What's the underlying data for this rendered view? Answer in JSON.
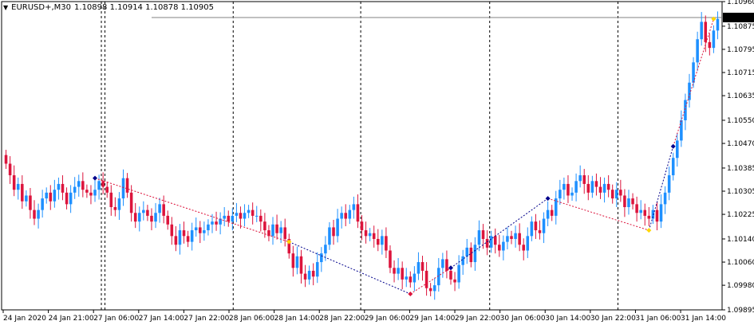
{
  "chart_header": {
    "dropdown_icon": "triangle-down-icon",
    "symbol": "EURUSD+,M30",
    "ohlc": "1.10898 1.10914 1.10878 1.10905"
  },
  "chart_data": {
    "type": "candlestick",
    "symbol": "EURUSD+",
    "timeframe": "M30",
    "ylim": [
      1.09895,
      1.1096
    ],
    "y_ticks": [
      "1.10960",
      "1.10875",
      "1.10795",
      "1.10715",
      "1.10635",
      "1.10550",
      "1.10470",
      "1.10385",
      "1.10305",
      "1.10225",
      "1.10140",
      "1.10060",
      "1.09980",
      "1.09895"
    ],
    "x_ticks": [
      "24 Jan 2020",
      "24 Jan 21:00",
      "27 Jan 06:00",
      "27 Jan 14:00",
      "27 Jan 22:00",
      "28 Jan 06:00",
      "28 Jan 14:00",
      "28 Jan 22:00",
      "29 Jan 06:00",
      "29 Jan 14:00",
      "29 Jan 22:00",
      "30 Jan 06:00",
      "30 Jan 14:00",
      "30 Jan 22:00",
      "31 Jan 06:00",
      "31 Jan 14:00"
    ],
    "current_price": "1.10905",
    "colors": {
      "up": "#1e90ff",
      "down": "#dc143c",
      "grid": "#000000",
      "zigzag_red": "#dc143c",
      "zigzag_blue": "#00008b",
      "marker_yellow": "#ffd700"
    },
    "closes": [
      1.104,
      1.1036,
      1.1031,
      1.1033,
      1.1027,
      1.1029,
      1.1024,
      1.1021,
      1.1024,
      1.1028,
      1.103,
      1.1027,
      1.1031,
      1.1033,
      1.103,
      1.1026,
      1.103,
      1.1032,
      1.1034,
      1.1031,
      1.103,
      1.1029,
      1.1031,
      1.1034,
      1.1032,
      1.103,
      1.1025,
      1.1024,
      1.1028,
      1.1035,
      1.103,
      1.1023,
      1.102,
      1.1023,
      1.1024,
      1.1022,
      1.102,
      1.1023,
      1.1026,
      1.1022,
      1.1019,
      1.1015,
      1.1012,
      1.1017,
      1.1015,
      1.1013,
      1.1017,
      1.1018,
      1.1016,
      1.1017,
      1.1019,
      1.102,
      1.1019,
      1.1021,
      1.1022,
      1.102,
      1.1022,
      1.1023,
      1.1021,
      1.1023,
      1.1024,
      1.1022,
      1.1022,
      1.102,
      1.1017,
      1.1015,
      1.1019,
      1.1016,
      1.1018,
      1.1014,
      1.1009,
      1.1004,
      1.1008,
      1.1002,
      1.1,
      1.1003,
      1.1001,
      1.1006,
      1.1009,
      1.1012,
      1.1018,
      1.1015,
      1.1021,
      1.1023,
      1.1021,
      1.1024,
      1.1026,
      1.102,
      1.1017,
      1.1015,
      1.1016,
      1.1014,
      1.1012,
      1.1015,
      1.101,
      1.1004,
      1.1002,
      1.1004,
      1.1,
      1.1001,
      1.0999,
      1.1002,
      1.1006,
      1.1003,
      1.0997,
      1.0996,
      1.0998,
      1.1004,
      1.1007,
      1.1003,
      1.1,
      1.0999,
      1.1005,
      1.1008,
      1.1011,
      1.1006,
      1.1012,
      1.1017,
      1.1014,
      1.1011,
      1.1015,
      1.1012,
      1.101,
      1.1013,
      1.1015,
      1.1014,
      1.1016,
      1.1012,
      1.101,
      1.1015,
      1.102,
      1.1017,
      1.1016,
      1.1021,
      1.1024,
      1.1022,
      1.1028,
      1.1031,
      1.1033,
      1.1029,
      1.103,
      1.1034,
      1.1036,
      1.1033,
      1.103,
      1.1034,
      1.1032,
      1.103,
      1.1033,
      1.1031,
      1.1028,
      1.1031,
      1.1029,
      1.1025,
      1.1028,
      1.1026,
      1.1023,
      1.1024,
      1.1022,
      1.1021,
      1.1024,
      1.102,
      1.1026,
      1.103,
      1.1036,
      1.1042,
      1.1048,
      1.1055,
      1.1062,
      1.1068,
      1.1075,
      1.1083,
      1.1089,
      1.1082,
      1.108,
      1.1086,
      1.109
    ],
    "pivot_markers": [
      {
        "index": 22,
        "type": "high",
        "color": "#00008b"
      },
      {
        "index": 70,
        "type": "high",
        "color": "#ffd700"
      },
      {
        "index": 100,
        "type": "low",
        "color": "#dc143c"
      },
      {
        "index": 110,
        "type": "high",
        "color": "#00008b"
      },
      {
        "index": 134,
        "type": "high",
        "color": "#00008b"
      },
      {
        "index": 159,
        "type": "low",
        "color": "#ffd700"
      },
      {
        "index": 165,
        "type": "high",
        "color": "#00008b"
      },
      {
        "index": 175,
        "type": "high",
        "color": "#ffd700"
      }
    ]
  }
}
